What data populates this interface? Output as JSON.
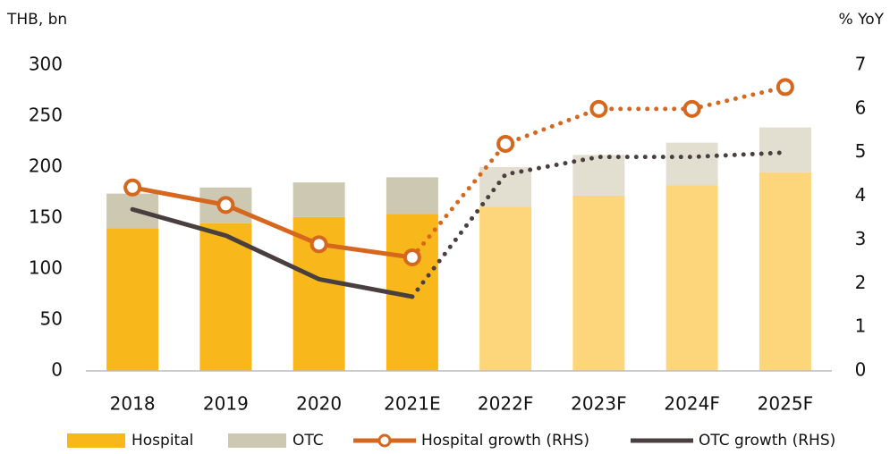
{
  "chart_data": {
    "type": "bar",
    "y_axis_label": "THB, bn",
    "y2_axis_label": "% YoY",
    "categories": [
      "2018",
      "2019",
      "2020",
      "2021E",
      "2022F",
      "2023F",
      "2024F",
      "2025F"
    ],
    "forecast_from": "2022F",
    "series": [
      {
        "name": "Hospital",
        "type": "bar",
        "color": "#f8b81b",
        "forecast_color": "#fdd67c",
        "values": [
          140,
          145,
          151,
          154,
          161,
          172,
          182,
          195
        ]
      },
      {
        "name": "OTC",
        "type": "bar",
        "color": "#cdc8b2",
        "forecast_color": "#e2dfd0",
        "values": [
          34,
          35,
          34,
          36,
          39,
          40,
          42,
          44
        ]
      },
      {
        "name": "Hospital growth (RHS)",
        "type": "line",
        "axis": "y2",
        "color": "#d5671f",
        "markers": true,
        "values": [
          4.2,
          3.8,
          2.9,
          2.6,
          5.2,
          6.0,
          6.0,
          6.5
        ]
      },
      {
        "name": "OTC growth (RHS)",
        "type": "line",
        "axis": "y2",
        "color": "#4a3f3f",
        "markers": false,
        "values": [
          3.7,
          3.1,
          2.1,
          1.7,
          4.5,
          4.9,
          4.9,
          5.0
        ]
      }
    ],
    "ylim": [
      0,
      300
    ],
    "yticks": [
      0,
      50,
      100,
      150,
      200,
      250,
      300
    ],
    "y2lim": [
      0,
      7
    ],
    "y2ticks": [
      0,
      1,
      2,
      3,
      4,
      5,
      6,
      7
    ],
    "grid": false,
    "legend": "bottom"
  }
}
